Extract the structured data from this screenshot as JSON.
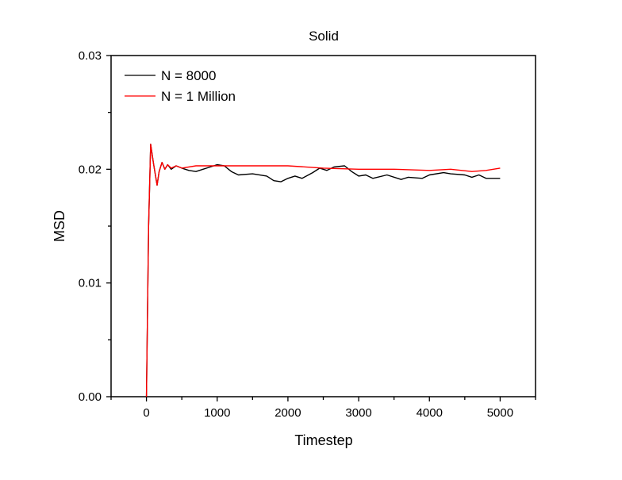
{
  "chart_data": {
    "type": "line",
    "title": "Solid",
    "xlabel": "Timestep",
    "ylabel": "MSD",
    "xlim": [
      -500,
      5500
    ],
    "ylim": [
      0,
      0.03
    ],
    "xticks": [
      0,
      1000,
      2000,
      3000,
      4000,
      5000
    ],
    "xtick_labels": [
      "0",
      "1000",
      "2000",
      "3000",
      "4000",
      "5000"
    ],
    "yticks": [
      0,
      0.01,
      0.02,
      0.03
    ],
    "ytick_labels": [
      "0.00",
      "0.01",
      "0.02",
      "0.03"
    ],
    "grid": false,
    "legend_position": "top-left",
    "series": [
      {
        "name": "N = 8000",
        "color": "#000000",
        "x": [
          0,
          30,
          60,
          100,
          150,
          180,
          220,
          260,
          300,
          350,
          420,
          500,
          600,
          700,
          800,
          900,
          1000,
          1100,
          1200,
          1300,
          1500,
          1700,
          1800,
          1900,
          2000,
          2100,
          2200,
          2350,
          2450,
          2550,
          2650,
          2800,
          2900,
          3000,
          3100,
          3200,
          3400,
          3600,
          3700,
          3900,
          4000,
          4200,
          4300,
          4500,
          4600,
          4700,
          4800,
          5000
        ],
        "y": [
          0,
          0.015,
          0.0222,
          0.0205,
          0.0186,
          0.0198,
          0.0206,
          0.02,
          0.0204,
          0.02,
          0.0203,
          0.0201,
          0.0199,
          0.0198,
          0.02,
          0.0202,
          0.0204,
          0.0203,
          0.0198,
          0.0195,
          0.0196,
          0.0194,
          0.019,
          0.0189,
          0.0192,
          0.0194,
          0.0192,
          0.0197,
          0.0201,
          0.0199,
          0.0202,
          0.0203,
          0.0198,
          0.0194,
          0.0195,
          0.0192,
          0.0195,
          0.0191,
          0.0193,
          0.0192,
          0.0195,
          0.0197,
          0.0196,
          0.0195,
          0.0193,
          0.0195,
          0.0192,
          0.0192
        ]
      },
      {
        "name": "N = 1 Million",
        "color": "#ff0000",
        "x": [
          0,
          30,
          60,
          100,
          150,
          180,
          220,
          260,
          300,
          350,
          420,
          500,
          700,
          1000,
          1500,
          2000,
          2500,
          3000,
          3500,
          4000,
          4300,
          4600,
          4800,
          5000
        ],
        "y": [
          0,
          0.015,
          0.0222,
          0.0205,
          0.0186,
          0.0198,
          0.0206,
          0.02,
          0.0204,
          0.0201,
          0.0203,
          0.0201,
          0.0203,
          0.0203,
          0.0203,
          0.0203,
          0.0201,
          0.02,
          0.02,
          0.0199,
          0.02,
          0.0198,
          0.0199,
          0.0201
        ]
      }
    ]
  }
}
